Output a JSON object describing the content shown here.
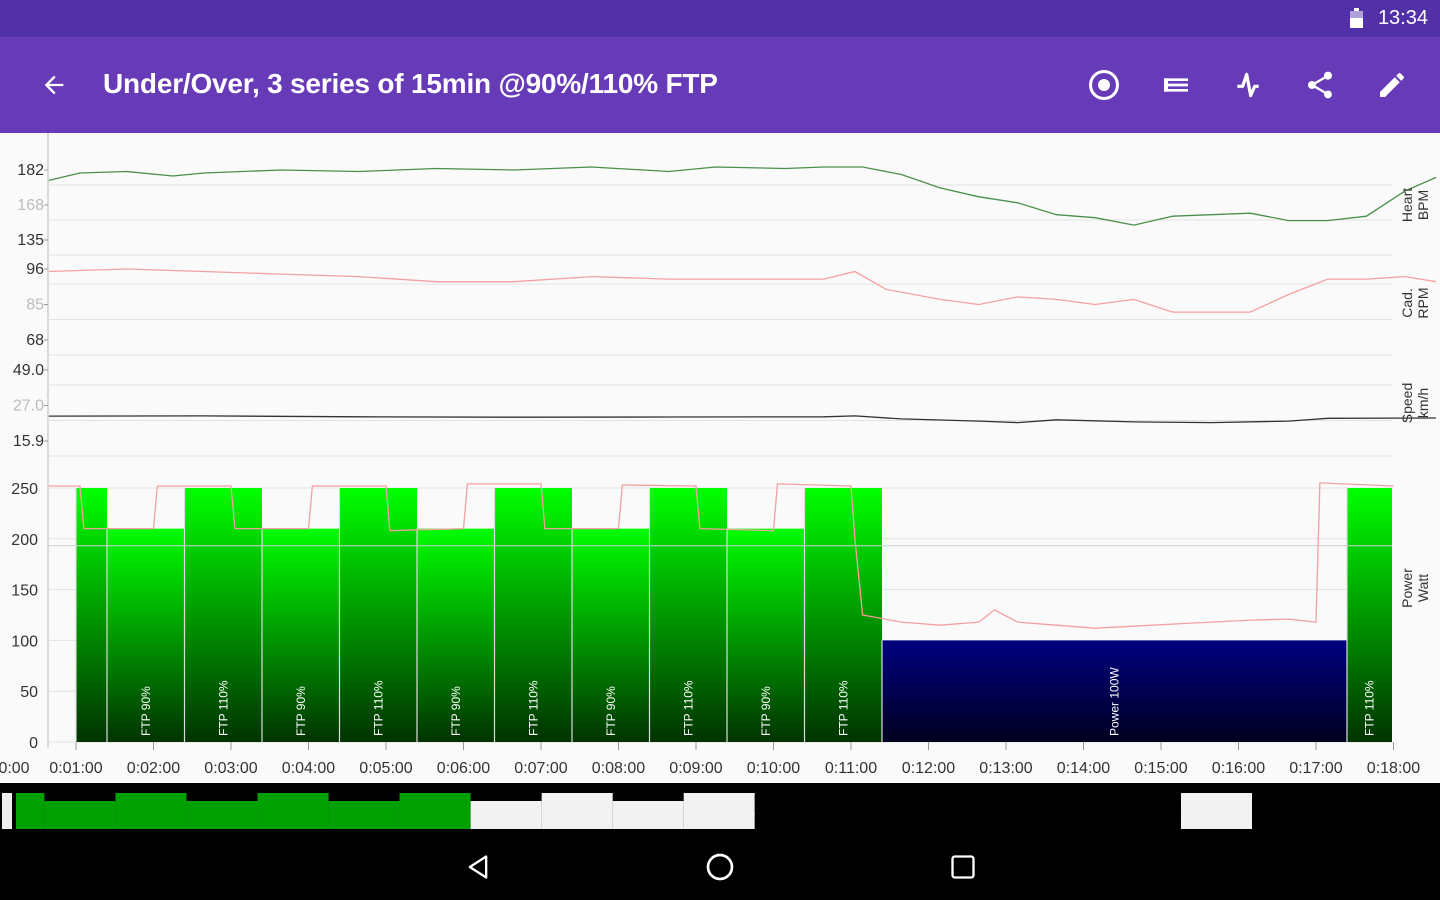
{
  "status_bar": {
    "time": "13:34"
  },
  "app_bar": {
    "title": "Under/Over, 3 series of 15min @90%/110% FTP",
    "icons": [
      "back-arrow-icon",
      "record-icon",
      "list-icon",
      "activity-icon",
      "share-icon",
      "edit-icon"
    ]
  },
  "colors": {
    "status_bar": "#5130a8",
    "app_bar": "#673ab7",
    "heart_line": "#4a8f4a",
    "cadence_line": "#f4a0a0",
    "speed_line": "#333333",
    "power_line": "#f4a0a0",
    "workout_bar": "#00ff00",
    "steady_bar": "#000080",
    "overview_done": "#00a000"
  },
  "axis_titles": {
    "heart": [
      "Heart",
      "BPM"
    ],
    "cadence": [
      "Cad.",
      "RPM"
    ],
    "speed": [
      "Speed",
      "km/h"
    ],
    "power": [
      "Power",
      "Watt"
    ]
  },
  "y_ticks": {
    "heart": [
      {
        "label": "182",
        "faint": false
      },
      {
        "label": "168",
        "faint": true
      },
      {
        "label": "135",
        "faint": false
      }
    ],
    "cadence": [
      {
        "label": "96",
        "faint": false
      },
      {
        "label": "85",
        "faint": true
      },
      {
        "label": "68",
        "faint": false
      }
    ],
    "speed": [
      {
        "label": "49.0",
        "faint": false
      },
      {
        "label": "27.0",
        "faint": true
      },
      {
        "label": "15.9",
        "faint": false
      }
    ],
    "power": [
      "250",
      "200",
      "150",
      "100",
      "50",
      "0"
    ]
  },
  "x_ticks": [
    "0:00",
    "0:01:00",
    "0:02:00",
    "0:03:00",
    "0:04:00",
    "0:05:00",
    "0:06:00",
    "0:07:00",
    "0:08:00",
    "0:09:00",
    "0:10:00",
    "0:11:00",
    "0:12:00",
    "0:13:00",
    "0:14:00",
    "0:15:00",
    "0:16:00",
    "0:17:00",
    "0:18:00"
  ],
  "chart_data": {
    "type": "bar",
    "x_unit": "minutes",
    "intervals": [
      {
        "start": 0.0,
        "end": 0.4,
        "watts": 250,
        "label": ""
      },
      {
        "start": 0.4,
        "end": 1.4,
        "watts": 210,
        "label": "FTP 90%"
      },
      {
        "start": 1.4,
        "end": 2.4,
        "watts": 250,
        "label": "FTP 110%"
      },
      {
        "start": 2.4,
        "end": 3.4,
        "watts": 210,
        "label": "FTP 90%"
      },
      {
        "start": 3.4,
        "end": 4.4,
        "watts": 250,
        "label": "FTP 110%"
      },
      {
        "start": 4.4,
        "end": 5.4,
        "watts": 210,
        "label": "FTP 90%"
      },
      {
        "start": 5.4,
        "end": 6.4,
        "watts": 250,
        "label": "FTP 110%"
      },
      {
        "start": 6.4,
        "end": 7.4,
        "watts": 210,
        "label": "FTP 90%"
      },
      {
        "start": 7.4,
        "end": 8.4,
        "watts": 250,
        "label": "FTP 110%"
      },
      {
        "start": 8.4,
        "end": 9.4,
        "watts": 210,
        "label": "FTP 90%"
      },
      {
        "start": 9.4,
        "end": 10.4,
        "watts": 250,
        "label": "FTP 110%"
      },
      {
        "start": 10.4,
        "end": 16.4,
        "watts": 100,
        "label": "Power 100W"
      },
      {
        "start": 16.4,
        "end": 17.4,
        "watts": 250,
        "label": "FTP 110%"
      }
    ],
    "series": [
      {
        "name": "Heart BPM",
        "points": [
          [
            0,
            175
          ],
          [
            0.4,
            180
          ],
          [
            1,
            181
          ],
          [
            1.6,
            178
          ],
          [
            2,
            180
          ],
          [
            3,
            182
          ],
          [
            4,
            181
          ],
          [
            5,
            183
          ],
          [
            6,
            182
          ],
          [
            7,
            184
          ],
          [
            8,
            181
          ],
          [
            8.6,
            184
          ],
          [
            9.5,
            183
          ],
          [
            10,
            184
          ],
          [
            10.5,
            184
          ],
          [
            11,
            179
          ],
          [
            11.5,
            170
          ],
          [
            12,
            164
          ],
          [
            12.5,
            160
          ],
          [
            13,
            152
          ],
          [
            13.5,
            150
          ],
          [
            14,
            145
          ],
          [
            14.5,
            151
          ],
          [
            15,
            152
          ],
          [
            15.5,
            153
          ],
          [
            16,
            148
          ],
          [
            16.5,
            148
          ],
          [
            17,
            151
          ],
          [
            17.5,
            168
          ],
          [
            17.9,
            177
          ]
        ]
      },
      {
        "name": "Cad. RPM",
        "points": [
          [
            0,
            95
          ],
          [
            1,
            96
          ],
          [
            2,
            95
          ],
          [
            3,
            94
          ],
          [
            4,
            93
          ],
          [
            5,
            91
          ],
          [
            6,
            91
          ],
          [
            7,
            93
          ],
          [
            8,
            92
          ],
          [
            9,
            92
          ],
          [
            10,
            92
          ],
          [
            10.4,
            95
          ],
          [
            10.8,
            88
          ],
          [
            11.5,
            84
          ],
          [
            12,
            82
          ],
          [
            12.5,
            85
          ],
          [
            13,
            84
          ],
          [
            13.5,
            82
          ],
          [
            14,
            84
          ],
          [
            14.5,
            79
          ],
          [
            15,
            79
          ],
          [
            15.5,
            79
          ],
          [
            16,
            86
          ],
          [
            16.5,
            92
          ],
          [
            17,
            92
          ],
          [
            17.5,
            93
          ],
          [
            17.9,
            91
          ]
        ]
      },
      {
        "name": "Speed km/h",
        "points": [
          [
            0,
            27.5
          ],
          [
            2,
            27.6
          ],
          [
            4,
            27.2
          ],
          [
            6,
            27.0
          ],
          [
            8,
            27.1
          ],
          [
            10,
            27.2
          ],
          [
            10.4,
            27.6
          ],
          [
            11,
            26.2
          ],
          [
            12,
            25.2
          ],
          [
            12.5,
            24.5
          ],
          [
            13,
            25.8
          ],
          [
            14,
            24.8
          ],
          [
            15,
            24.5
          ],
          [
            16,
            25.2
          ],
          [
            16.5,
            26.5
          ],
          [
            17.9,
            26.6
          ]
        ]
      },
      {
        "name": "Power Watt",
        "points": [
          [
            0,
            252
          ],
          [
            0.4,
            252
          ],
          [
            0.45,
            210
          ],
          [
            1.35,
            210
          ],
          [
            1.4,
            252
          ],
          [
            2.35,
            252
          ],
          [
            2.4,
            210
          ],
          [
            3.35,
            210
          ],
          [
            3.4,
            252
          ],
          [
            4.35,
            252
          ],
          [
            4.4,
            208
          ],
          [
            5.35,
            210
          ],
          [
            5.4,
            254
          ],
          [
            6.35,
            254
          ],
          [
            6.4,
            210
          ],
          [
            7.35,
            210
          ],
          [
            7.4,
            253
          ],
          [
            8.35,
            252
          ],
          [
            8.4,
            210
          ],
          [
            9.35,
            208
          ],
          [
            9.4,
            254
          ],
          [
            10.35,
            252
          ],
          [
            10.4,
            200
          ],
          [
            10.5,
            125
          ],
          [
            11,
            118
          ],
          [
            11.5,
            115
          ],
          [
            12,
            118
          ],
          [
            12.2,
            130
          ],
          [
            12.5,
            118
          ],
          [
            13,
            115
          ],
          [
            13.5,
            112
          ],
          [
            14,
            114
          ],
          [
            14.5,
            116
          ],
          [
            15,
            118
          ],
          [
            15.5,
            120
          ],
          [
            16,
            121
          ],
          [
            16.35,
            118
          ],
          [
            16.4,
            255
          ],
          [
            17.35,
            252
          ]
        ]
      }
    ],
    "ylim_power": [
      0,
      250
    ]
  },
  "navigation": {
    "buttons": [
      "back-icon",
      "home-icon",
      "recents-icon"
    ]
  }
}
